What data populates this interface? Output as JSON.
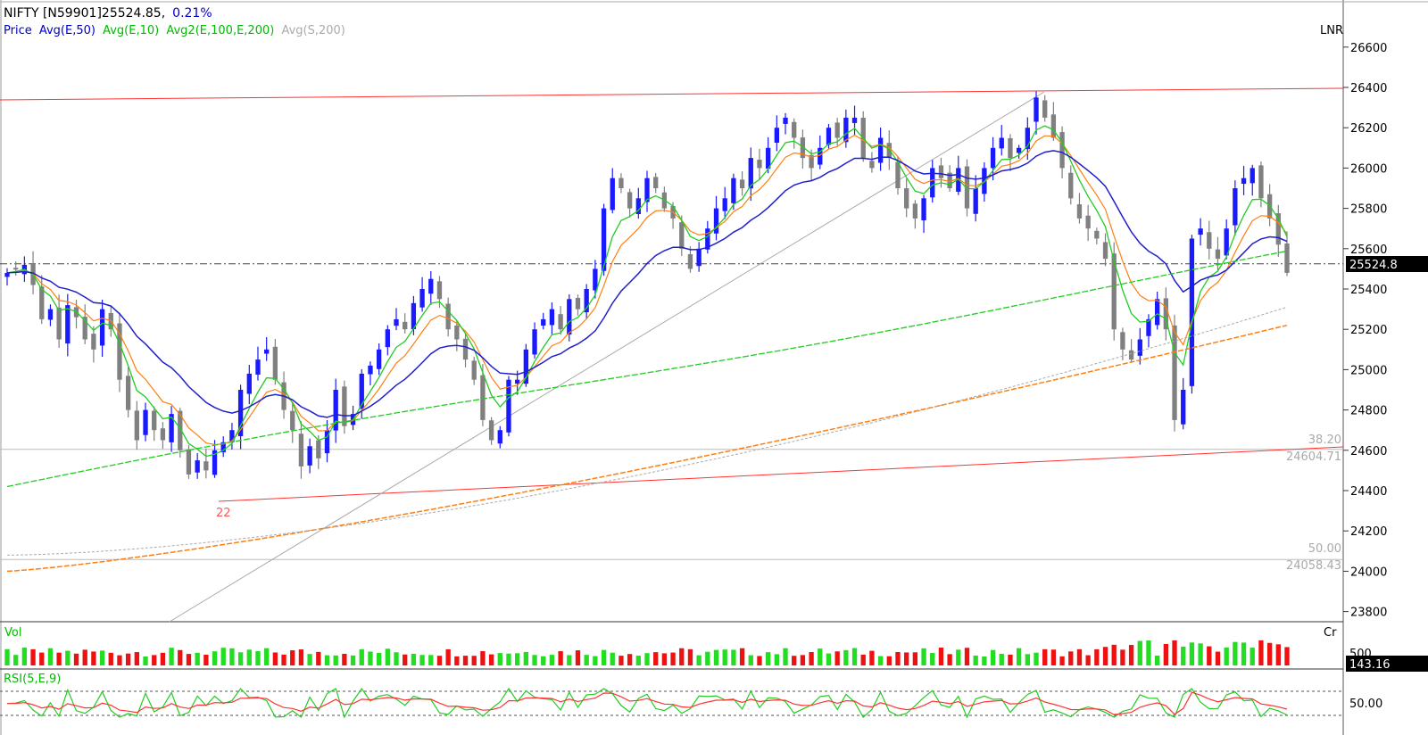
{
  "header": {
    "symbol": "NIFTY",
    "contract": "[N59901]",
    "price": "25524.85",
    "sep": ",",
    "change": "0.21%"
  },
  "legend": [
    {
      "text": "Price",
      "color": "#0000cc"
    },
    {
      "text": "Avg(E,50)",
      "color": "#0000cc"
    },
    {
      "text": "Avg(E,10)",
      "color": "#00bb00"
    },
    {
      "text": "Avg2(E,100,E,200)",
      "color": "#00bb00"
    },
    {
      "text": "Avg(S,200)",
      "color": "#aaaaaa"
    }
  ],
  "scale_mode": "LNR",
  "price_axis": {
    "ticks": [
      "26600",
      "26400",
      "26200",
      "26000",
      "25800",
      "25600",
      "25400",
      "25200",
      "25000",
      "24800",
      "24600",
      "24400",
      "24200",
      "24000",
      "23800"
    ],
    "current_label": "25524.8"
  },
  "annotations": {
    "fib_382_pct": "38.20",
    "fib_382_value": "24604.71",
    "fib_50_pct": "50.00",
    "fib_50_value": "24058.43",
    "swing_low_label": "22"
  },
  "volume_panel": {
    "title": "Vol",
    "unit": "Cr",
    "scale_label": "500",
    "current_label": "143.16"
  },
  "rsi_panel": {
    "title": "RSI(5,E,9)",
    "tick_label": "50.00"
  },
  "colors": {
    "up": "#1a1aff",
    "down": "#808080",
    "ema50": "#1f1fcc",
    "ema10": "#22cc22",
    "ema100": "#22cc22",
    "ema200": "#ff7f0e",
    "sma200": "#aaaaaa",
    "red_line": "#ff3333",
    "vol_up": "#22dd22",
    "vol_down": "#ee1111"
  },
  "chart_data": {
    "type": "candlestick",
    "title": "NIFTY [N59901]25524.85, 0.21%",
    "y_range": [
      23800,
      26680
    ],
    "close_series": [
      25480,
      25500,
      25520,
      25420,
      25250,
      25300,
      25150,
      25320,
      25260,
      25150,
      25100,
      25300,
      25200,
      24950,
      24800,
      24650,
      24800,
      24700,
      24650,
      24780,
      24600,
      24480,
      24550,
      24500,
      24600,
      24640,
      24700,
      24900,
      24980,
      25050,
      25100,
      24950,
      24800,
      24700,
      24520,
      24620,
      24560,
      24700,
      24900,
      24720,
      24780,
      24980,
      25020,
      25100,
      25200,
      25250,
      25200,
      25330,
      25400,
      25450,
      25350,
      25200,
      25150,
      25050,
      24950,
      24750,
      24650,
      24700,
      24950,
      24950,
      25100,
      25200,
      25250,
      25300,
      25200,
      25350,
      25300,
      25400,
      25500,
      25800,
      25950,
      25900,
      25800,
      25850,
      25950,
      25900,
      25800,
      25750,
      25600,
      25500,
      25600,
      25700,
      25800,
      25850,
      25950,
      25900,
      26050,
      26000,
      26100,
      26200,
      26250,
      26150,
      26050,
      26000,
      26100,
      26200,
      26150,
      26250,
      26250,
      26050,
      26000,
      26150,
      26050,
      25900,
      25800,
      25750,
      25850,
      26000,
      25950,
      25900,
      26000,
      25800,
      25900,
      26000,
      26100,
      26150,
      26050,
      26100,
      26200,
      26350,
      26250,
      26150,
      26000,
      25850,
      25750,
      25700,
      25650,
      25550,
      25200,
      25100,
      25050,
      25150,
      25250,
      25350,
      25200,
      24750,
      24900,
      25650,
      25700,
      25600,
      25550,
      25700,
      25900,
      25950,
      26000,
      25850,
      25750,
      25620,
      25480
    ],
    "current_price": 25524.85,
    "fib_levels": [
      {
        "pct": 38.2,
        "value": 24604.71
      },
      {
        "pct": 50.0,
        "value": 24058.43
      }
    ]
  }
}
